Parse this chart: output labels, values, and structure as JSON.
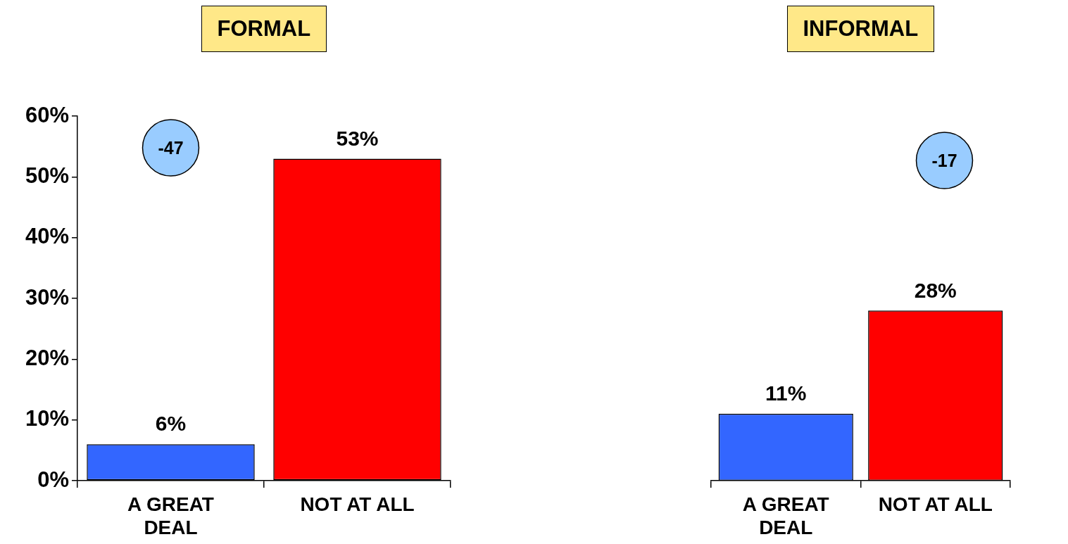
{
  "chart_data": [
    {
      "type": "bar",
      "title": "FORMAL",
      "categories": [
        "A GREAT DEAL",
        "NOT AT ALL"
      ],
      "values": [
        6,
        53
      ],
      "colors": [
        "#3366ff",
        "#ff0000"
      ],
      "value_labels": [
        "6%",
        "53%"
      ],
      "ylim": [
        0,
        60
      ],
      "yticks": [
        {
          "value": 0,
          "label": "0%"
        },
        {
          "value": 10,
          "label": "10%"
        },
        {
          "value": 20,
          "label": "20%"
        },
        {
          "value": 30,
          "label": "30%"
        },
        {
          "value": 40,
          "label": "40%"
        },
        {
          "value": 50,
          "label": "50%"
        },
        {
          "value": 60,
          "label": "60%"
        }
      ],
      "annotations": [
        "-47"
      ]
    },
    {
      "type": "bar",
      "title": "INFORMAL",
      "categories": [
        "A GREAT DEAL",
        "NOT AT ALL"
      ],
      "values": [
        11,
        28
      ],
      "colors": [
        "#3366ff",
        "#ff0000"
      ],
      "value_labels": [
        "11%",
        "28%"
      ],
      "ylim": [
        0,
        60
      ],
      "tick_labels": "x",
      "annotations": [
        "-17"
      ]
    }
  ]
}
